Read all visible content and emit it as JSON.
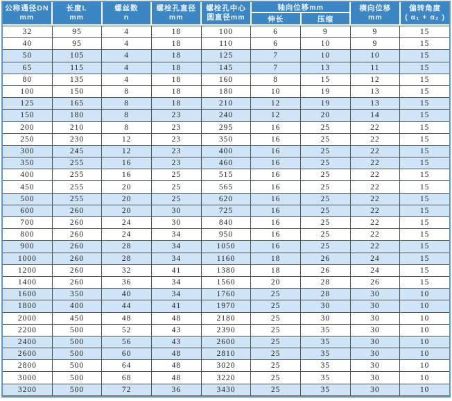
{
  "table": {
    "header": {
      "dn": {
        "l1": "公称通径DN",
        "l2": "mm"
      },
      "length": {
        "l1": "长度L",
        "l2": "mm"
      },
      "screws": {
        "l1": "螺丝数",
        "l2": "n"
      },
      "bolt_hole": {
        "l1": "螺栓孔直径",
        "l2": "mm"
      },
      "bolt_circle": {
        "l1": "螺栓孔中心",
        "l2": "圆直径mm"
      },
      "axial": {
        "title": "轴向位移mm",
        "elong": "伸长",
        "compress": "压缩"
      },
      "lateral": {
        "l1": "横向位移",
        "l2": "mm"
      },
      "deflection": {
        "l1": "偏转角度",
        "l2": "( α₁ + α₂ )"
      }
    },
    "rows": [
      [
        32,
        95,
        4,
        18,
        100,
        6,
        9,
        9,
        15
      ],
      [
        40,
        95,
        4,
        18,
        110,
        6,
        10,
        9,
        15
      ],
      [
        50,
        105,
        4,
        18,
        125,
        7,
        10,
        10,
        15
      ],
      [
        65,
        115,
        4,
        18,
        145,
        7,
        13,
        11,
        15
      ],
      [
        80,
        135,
        4,
        18,
        160,
        8,
        15,
        12,
        15
      ],
      [
        100,
        150,
        8,
        18,
        180,
        10,
        19,
        13,
        15
      ],
      [
        125,
        165,
        8,
        18,
        210,
        12,
        19,
        13,
        15
      ],
      [
        150,
        180,
        8,
        23,
        240,
        12,
        20,
        14,
        15
      ],
      [
        200,
        210,
        8,
        23,
        295,
        16,
        25,
        22,
        15
      ],
      [
        250,
        230,
        12,
        23,
        350,
        16,
        25,
        22,
        15
      ],
      [
        300,
        245,
        12,
        23,
        400,
        16,
        25,
        22,
        15
      ],
      [
        350,
        255,
        16,
        23,
        460,
        16,
        25,
        22,
        15
      ],
      [
        400,
        255,
        16,
        25,
        515,
        16,
        25,
        22,
        15
      ],
      [
        450,
        255,
        20,
        25,
        565,
        16,
        25,
        22,
        15
      ],
      [
        500,
        255,
        20,
        25,
        620,
        16,
        25,
        22,
        15
      ],
      [
        600,
        260,
        20,
        30,
        725,
        16,
        25,
        22,
        15
      ],
      [
        700,
        260,
        24,
        30,
        840,
        16,
        25,
        22,
        15
      ],
      [
        800,
        260,
        24,
        34,
        950,
        16,
        25,
        22,
        15
      ],
      [
        900,
        260,
        28,
        34,
        1050,
        16,
        25,
        22,
        15
      ],
      [
        1000,
        260,
        28,
        34,
        1160,
        18,
        26,
        24,
        15
      ],
      [
        1200,
        260,
        32,
        41,
        1380,
        18,
        26,
        24,
        15
      ],
      [
        1400,
        260,
        36,
        34,
        1560,
        20,
        28,
        26,
        15
      ],
      [
        1600,
        350,
        40,
        34,
        1760,
        25,
        28,
        30,
        10
      ],
      [
        1800,
        400,
        44,
        41,
        1970,
        25,
        30,
        30,
        10
      ],
      [
        2000,
        450,
        48,
        48,
        2180,
        25,
        30,
        30,
        10
      ],
      [
        2200,
        500,
        52,
        43,
        2390,
        25,
        35,
        30,
        10
      ],
      [
        2400,
        500,
        56,
        43,
        2600,
        25,
        35,
        30,
        10
      ],
      [
        2600,
        500,
        60,
        48,
        2810,
        25,
        35,
        30,
        10
      ],
      [
        2800,
        500,
        64,
        48,
        3020,
        25,
        35,
        30,
        10
      ],
      [
        3000,
        500,
        68,
        48,
        3220,
        25,
        35,
        30,
        10
      ],
      [
        3200,
        500,
        72,
        36,
        3430,
        25,
        35,
        30,
        10
      ]
    ]
  },
  "colors": {
    "header_bg": "#3d86c4",
    "header_text": "#eaf3fb",
    "row_bg": "#ffffff",
    "row_alt_bg": "#cfe5f7",
    "grid_line": "#505050",
    "outer_border": "#5e96c8",
    "data_text": "#222222"
  }
}
